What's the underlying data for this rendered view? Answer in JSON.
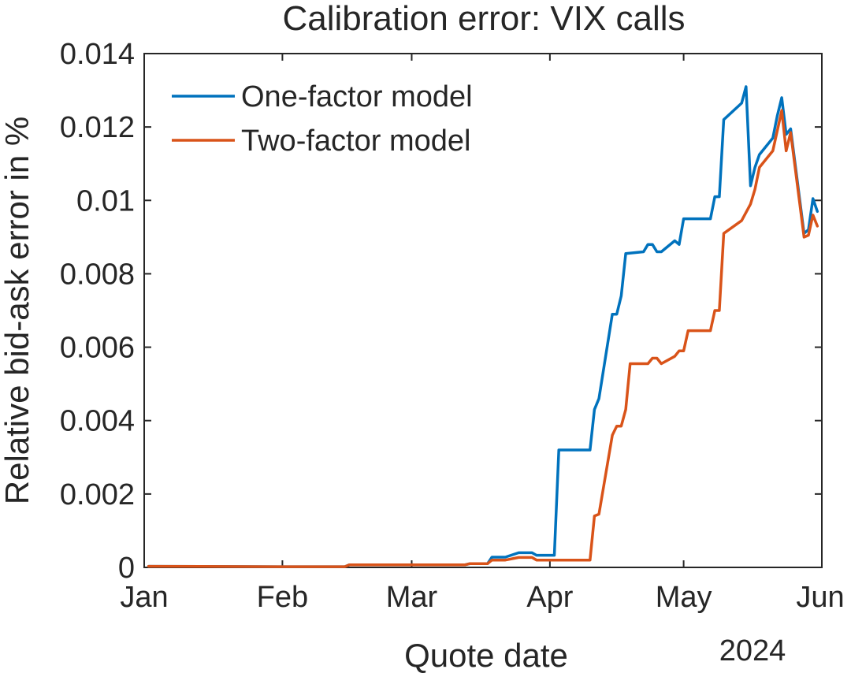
{
  "chart_data": {
    "type": "line",
    "title": "Calibration error: VIX calls",
    "xlabel": "Quote date",
    "ylabel": "Relative bid-ask error in %",
    "x_secondary_label": "2024",
    "x_tick_labels": [
      "Jan",
      "Feb",
      "Mar",
      "Apr",
      "May",
      "Jun"
    ],
    "x_ticks": [
      "2024-01-01",
      "2024-02-01",
      "2024-03-01",
      "2024-04-01",
      "2024-05-01",
      "2024-06-01"
    ],
    "xlim": [
      "2024-01-01",
      "2024-06-01"
    ],
    "y_tick_labels": [
      "0",
      "0.002",
      "0.004",
      "0.006",
      "0.008",
      "0.01",
      "0.012",
      "0.014"
    ],
    "y_ticks": [
      0,
      0.002,
      0.004,
      0.006,
      0.008,
      0.01,
      0.012,
      0.014
    ],
    "ylim": [
      0,
      0.014
    ],
    "grid": false,
    "legend_position": "top-left",
    "series": [
      {
        "name": "One-factor model",
        "color": "#0072BD",
        "points": [
          [
            "2024-01-02",
            3e-05
          ],
          [
            "2024-01-31",
            2e-05
          ],
          [
            "2024-02-15",
            2e-05
          ],
          [
            "2024-02-16",
            7e-05
          ],
          [
            "2024-03-13",
            7e-05
          ],
          [
            "2024-03-14",
            0.0001
          ],
          [
            "2024-03-18",
            0.0001
          ],
          [
            "2024-03-19",
            0.00028
          ],
          [
            "2024-03-22",
            0.00028
          ],
          [
            "2024-03-25",
            0.0004
          ],
          [
            "2024-03-26",
            0.0004
          ],
          [
            "2024-03-27",
            0.0004
          ],
          [
            "2024-03-28",
            0.0004
          ],
          [
            "2024-03-29",
            0.00033
          ],
          [
            "2024-04-01",
            0.00033
          ],
          [
            "2024-04-02",
            0.00033
          ],
          [
            "2024-04-03",
            0.0032
          ],
          [
            "2024-04-10",
            0.0032
          ],
          [
            "2024-04-11",
            0.0043
          ],
          [
            "2024-04-12",
            0.0046
          ],
          [
            "2024-04-15",
            0.0069
          ],
          [
            "2024-04-16",
            0.0069
          ],
          [
            "2024-04-17",
            0.0074
          ],
          [
            "2024-04-18",
            0.00855
          ],
          [
            "2024-04-22",
            0.0086
          ],
          [
            "2024-04-23",
            0.0088
          ],
          [
            "2024-04-24",
            0.0088
          ],
          [
            "2024-04-25",
            0.0086
          ],
          [
            "2024-04-26",
            0.0086
          ],
          [
            "2024-04-29",
            0.0089
          ],
          [
            "2024-04-30",
            0.0088
          ],
          [
            "2024-05-01",
            0.0095
          ],
          [
            "2024-05-07",
            0.0095
          ],
          [
            "2024-05-08",
            0.0101
          ],
          [
            "2024-05-09",
            0.0101
          ],
          [
            "2024-05-10",
            0.0122
          ],
          [
            "2024-05-14",
            0.01265
          ],
          [
            "2024-05-15",
            0.0131
          ],
          [
            "2024-05-16",
            0.0104
          ],
          [
            "2024-05-17",
            0.0109
          ],
          [
            "2024-05-18",
            0.01125
          ],
          [
            "2024-05-21",
            0.0117
          ],
          [
            "2024-05-22",
            0.0123
          ],
          [
            "2024-05-23",
            0.0128
          ],
          [
            "2024-05-24",
            0.0118
          ],
          [
            "2024-05-25",
            0.01195
          ],
          [
            "2024-05-28",
            0.0091
          ],
          [
            "2024-05-29",
            0.0092
          ],
          [
            "2024-05-30",
            0.01005
          ],
          [
            "2024-05-31",
            0.0097
          ]
        ]
      },
      {
        "name": "Two-factor model",
        "color": "#D95319",
        "points": [
          [
            "2024-01-02",
            3e-05
          ],
          [
            "2024-01-31",
            2e-05
          ],
          [
            "2024-02-15",
            2e-05
          ],
          [
            "2024-02-16",
            7e-05
          ],
          [
            "2024-03-13",
            7e-05
          ],
          [
            "2024-03-14",
            0.0001
          ],
          [
            "2024-03-18",
            0.0001
          ],
          [
            "2024-03-19",
            0.0002
          ],
          [
            "2024-03-22",
            0.0002
          ],
          [
            "2024-03-25",
            0.00027
          ],
          [
            "2024-03-28",
            0.00027
          ],
          [
            "2024-03-29",
            0.0002
          ],
          [
            "2024-04-01",
            0.0002
          ],
          [
            "2024-04-10",
            0.0002
          ],
          [
            "2024-04-11",
            0.0014
          ],
          [
            "2024-04-12",
            0.00145
          ],
          [
            "2024-04-15",
            0.0036
          ],
          [
            "2024-04-16",
            0.00385
          ],
          [
            "2024-04-17",
            0.00385
          ],
          [
            "2024-04-18",
            0.0043
          ],
          [
            "2024-04-19",
            0.00555
          ],
          [
            "2024-04-23",
            0.00555
          ],
          [
            "2024-04-24",
            0.0057
          ],
          [
            "2024-04-25",
            0.0057
          ],
          [
            "2024-04-26",
            0.00555
          ],
          [
            "2024-04-29",
            0.00575
          ],
          [
            "2024-04-30",
            0.0059
          ],
          [
            "2024-05-01",
            0.0059
          ],
          [
            "2024-05-02",
            0.00645
          ],
          [
            "2024-05-06",
            0.00645
          ],
          [
            "2024-05-07",
            0.00645
          ],
          [
            "2024-05-08",
            0.007
          ],
          [
            "2024-05-09",
            0.007
          ],
          [
            "2024-05-10",
            0.0091
          ],
          [
            "2024-05-14",
            0.00945
          ],
          [
            "2024-05-16",
            0.0099
          ],
          [
            "2024-05-17",
            0.0103
          ],
          [
            "2024-05-18",
            0.0109
          ],
          [
            "2024-05-21",
            0.01135
          ],
          [
            "2024-05-23",
            0.01245
          ],
          [
            "2024-05-24",
            0.01135
          ],
          [
            "2024-05-25",
            0.01185
          ],
          [
            "2024-05-28",
            0.009
          ],
          [
            "2024-05-29",
            0.00905
          ],
          [
            "2024-05-30",
            0.0096
          ],
          [
            "2024-05-31",
            0.0093
          ]
        ]
      }
    ]
  }
}
